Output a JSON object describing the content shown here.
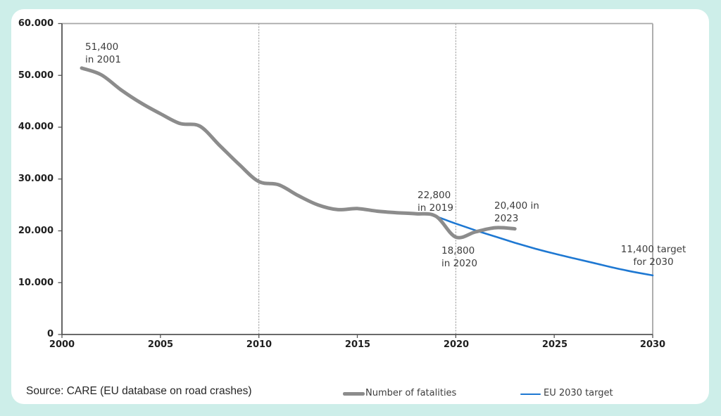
{
  "page": {
    "background": "#cdeee9",
    "panel_background": "#ffffff"
  },
  "footer": {
    "source_text": "Source: CARE (EU database on road crashes)"
  },
  "chart_data": {
    "type": "line",
    "title": "",
    "xlabel": "",
    "ylabel": "",
    "grid": "vertical-dashed",
    "legend_position": "bottom",
    "x_axis": {
      "range": [
        2000,
        2030
      ],
      "ticks": [
        2000,
        2005,
        2010,
        2015,
        2020,
        2025,
        2030
      ],
      "tick_labels": [
        "2000",
        "2005",
        "2010",
        "2015",
        "2020",
        "2025",
        "2030"
      ]
    },
    "y_axis": {
      "range": [
        0,
        60000
      ],
      "ticks": [
        0,
        10000,
        20000,
        30000,
        40000,
        50000,
        60000
      ],
      "tick_labels": [
        "0",
        "10.000",
        "20.000",
        "30.000",
        "40.000",
        "50.000",
        "60.000"
      ]
    },
    "vertical_gridlines_dashed": [
      2010,
      2020
    ],
    "series": [
      {
        "name": "Number of fatalities",
        "color": "#8c8c8c",
        "stroke_width": 5,
        "x": [
          2001,
          2002,
          2003,
          2004,
          2005,
          2006,
          2007,
          2008,
          2009,
          2010,
          2011,
          2012,
          2013,
          2014,
          2015,
          2016,
          2017,
          2018,
          2019,
          2020,
          2021,
          2022,
          2023
        ],
        "values": [
          51400,
          50100,
          47200,
          44700,
          42600,
          40700,
          40200,
          36500,
          32800,
          29500,
          28900,
          26800,
          25000,
          24100,
          24300,
          23800,
          23500,
          23300,
          22800,
          18800,
          19800,
          20600,
          20400
        ]
      },
      {
        "name": "EU 2030 target",
        "color": "#1e78d2",
        "stroke_width": 2.6,
        "x": [
          2019,
          2020,
          2021,
          2022,
          2023,
          2024,
          2025,
          2026,
          2027,
          2028,
          2029,
          2030
        ],
        "values": [
          22800,
          21400,
          20100,
          18900,
          17700,
          16600,
          15600,
          14700,
          13800,
          12900,
          12100,
          11400
        ]
      }
    ],
    "annotations": [
      {
        "line1": "51,400",
        "line2": "in 2001",
        "x": 2001,
        "value": 51400
      },
      {
        "line1": "22,800",
        "line2": "in 2019",
        "x": 2019,
        "value": 22800
      },
      {
        "line1": "18,800",
        "line2": "in 2020",
        "x": 2020,
        "value": 18800
      },
      {
        "line1": "20,400 in",
        "line2": "2023",
        "x": 2023,
        "value": 20400
      },
      {
        "line1": "11,400 target",
        "line2": "for 2030",
        "x": 2030,
        "value": 11400
      }
    ]
  }
}
